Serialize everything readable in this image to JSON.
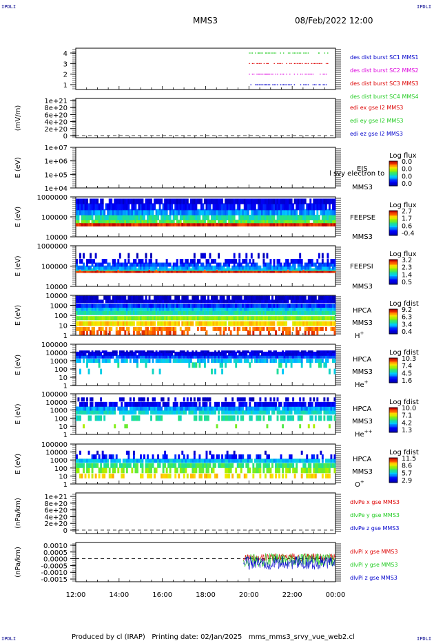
{
  "corner_labels": {
    "tl": "IPDLI",
    "tr": "IPDLI",
    "bl": "IPDLI",
    "br": "IPDLI"
  },
  "header": {
    "spacecraft": "MMS3",
    "datetime": "08/Feb/2022 12:00"
  },
  "footer": {
    "text": "Produced by cl (IRAP)   Printing date: 02/Jan/2025   mms_mms3_srvy_vue_web2.cl"
  },
  "time_axis": {
    "ticks": [
      "12:00",
      "14:00",
      "16:00",
      "18:00",
      "20:00",
      "22:00",
      "00:00"
    ]
  },
  "colors": {
    "red": "#dd0000",
    "green": "#22cc22",
    "blue": "#0000cc",
    "magenta": "#dd00dd"
  },
  "chart_data": [
    {
      "type": "scatter",
      "panel": "des-dist-burst",
      "ylabel": "",
      "yticks": [
        "4",
        "3",
        "2",
        "1"
      ],
      "ylim": [
        0.5,
        4.5
      ],
      "xlim_hours": [
        12,
        24
      ],
      "series": [
        {
          "name": "des dist burst SC1 MMS1",
          "color": "#0000cc",
          "level": 1,
          "x_hours": [
            20.0,
            20.4,
            20.8,
            21.3,
            21.8,
            22.3,
            22.8,
            23.2
          ]
        },
        {
          "name": "des dist burst SC2 MMS2",
          "color": "#dd00dd",
          "level": 2,
          "x_hours": [
            20.0,
            20.4,
            20.8,
            21.3,
            21.8,
            22.3,
            22.8,
            23.2
          ]
        },
        {
          "name": "des dist burst SC3 MMS3",
          "color": "#dd0000",
          "level": 3,
          "x_hours": [
            20.0,
            20.4,
            20.8,
            21.3,
            21.8,
            22.3,
            22.8,
            23.2
          ]
        },
        {
          "name": "des dist burst SC4 MMS4",
          "color": "#22cc22",
          "level": 4,
          "x_hours": [
            20.0,
            20.4,
            20.8,
            21.3,
            21.8,
            22.3,
            22.8,
            23.2
          ]
        }
      ]
    },
    {
      "type": "line",
      "panel": "edi-e",
      "ylabel": "(mV/m)",
      "yticks": [
        "1e+21",
        "8e+20",
        "6e+20",
        "4e+20",
        "2e+20",
        "0"
      ],
      "ylim": [
        0,
        1e+21
      ],
      "series": [
        {
          "name": "edi ex gse l2 MMS3",
          "color": "#dd0000",
          "values": []
        },
        {
          "name": "edi ey gse l2 MMS3",
          "color": "#22cc22",
          "values": []
        },
        {
          "name": "edi ez gse l2 MMS3",
          "color": "#0000cc",
          "values": []
        }
      ]
    },
    {
      "type": "heatmap",
      "panel": "eis",
      "ylabel": "E (eV)",
      "yticks": [
        "1e+07",
        "1e+06",
        "1e+05",
        "1e+04"
      ],
      "ylog": true,
      "instrument": "EIS",
      "spacecraft": "MMS3",
      "overlay_text": "l svy electron to",
      "colorbar": {
        "title": "Log flux",
        "ticks": [
          "0.0",
          "0.0",
          "0.0",
          "0.0"
        ]
      },
      "data_present": false
    },
    {
      "type": "heatmap",
      "panel": "feepse",
      "ylabel": "E (eV)",
      "yticks": [
        "1000000",
        "100000",
        "10000"
      ],
      "ylog": true,
      "instrument": "FEEPSE",
      "spacecraft": "MMS3",
      "colorbar": {
        "title": "Log flux",
        "ticks": [
          "2.7",
          "1.7",
          "0.6",
          "-0.4"
        ]
      },
      "profile": {
        "energy_eV": [
          40000,
          60000,
          100000,
          200000,
          400000,
          800000
        ],
        "level": [
          0.95,
          0.55,
          0.45,
          0.3,
          0.15,
          0.08
        ]
      }
    },
    {
      "type": "heatmap",
      "panel": "feepsi",
      "ylabel": "E (eV)",
      "yticks": [
        "1000000",
        "100000",
        "10000"
      ],
      "ylog": true,
      "instrument": "FEEPSI",
      "spacecraft": "MMS3",
      "colorbar": {
        "title": "Log flux",
        "ticks": [
          "3.2",
          "2.3",
          "1.4",
          "0.5"
        ]
      },
      "profile": {
        "energy_eV": [
          55000,
          70000,
          90000,
          130000,
          200000,
          400000
        ],
        "level": [
          0.95,
          0.4,
          0.3,
          0.22,
          0.12,
          0.05
        ]
      }
    },
    {
      "type": "heatmap",
      "panel": "hpca-h",
      "ylabel": "E (eV)",
      "yticks": [
        "10000",
        "1000",
        "100",
        "10",
        "1"
      ],
      "ylog": true,
      "instrument": "HPCA",
      "spacecraft": "MMS3",
      "species": "H",
      "charge": "+",
      "colorbar": {
        "title": "Log fdist",
        "ticks": [
          "9.2",
          "6.3",
          "3.4",
          "0.4"
        ]
      },
      "profile": {
        "energy_eV": [
          2,
          5,
          20,
          80,
          300,
          800,
          2000,
          6000,
          15000
        ],
        "level": [
          0.9,
          0.85,
          0.75,
          0.6,
          0.45,
          0.35,
          0.2,
          0.08,
          0.03
        ]
      }
    },
    {
      "type": "heatmap",
      "panel": "hpca-he",
      "ylabel": "E (eV)",
      "yticks": [
        "100000",
        "10000",
        "1000",
        "100",
        "10",
        "1"
      ],
      "ylog": true,
      "instrument": "HPCA",
      "spacecraft": "MMS3",
      "species": "He",
      "charge": "+",
      "colorbar": {
        "title": "Log fdist",
        "ticks": [
          "10.3",
          "7.4",
          "4.5",
          "1.6"
        ]
      },
      "profile": {
        "energy_eV": [
          50,
          300,
          1000,
          3000,
          7000,
          12000
        ],
        "level": [
          0.4,
          0.45,
          0.35,
          0.22,
          0.1,
          0.05
        ]
      }
    },
    {
      "type": "heatmap",
      "panel": "hpca-he2",
      "ylabel": "E (eV)",
      "yticks": [
        "100000",
        "10000",
        "1000",
        "100",
        "10",
        "1"
      ],
      "ylog": true,
      "instrument": "HPCA",
      "spacecraft": "MMS3",
      "species": "He",
      "charge": "++",
      "colorbar": {
        "title": "Log fdist",
        "ticks": [
          "10.0",
          "7.1",
          "4.2",
          "1.3"
        ]
      },
      "profile": {
        "energy_eV": [
          10,
          100,
          500,
          1500,
          5000,
          20000
        ],
        "level": [
          0.6,
          0.45,
          0.4,
          0.3,
          0.12,
          0.05
        ]
      }
    },
    {
      "type": "heatmap",
      "panel": "hpca-o",
      "ylabel": "E (eV)",
      "yticks": [
        "100000",
        "10000",
        "1000",
        "100",
        "10",
        "1"
      ],
      "ylog": true,
      "instrument": "HPCA",
      "spacecraft": "MMS3",
      "species": "O",
      "charge": "+",
      "colorbar": {
        "title": "Log fdist",
        "ticks": [
          "11.5",
          "8.6",
          "5.7",
          "2.9"
        ]
      },
      "profile": {
        "energy_eV": [
          10,
          50,
          200,
          800,
          2500,
          8000
        ],
        "level": [
          0.75,
          0.6,
          0.5,
          0.35,
          0.15,
          0.05
        ]
      }
    },
    {
      "type": "line",
      "panel": "dlvpe",
      "ylabel": "(nPa/km)",
      "yticks": [
        "1e+21",
        "8e+20",
        "6e+20",
        "4e+20",
        "2e+20",
        "0"
      ],
      "ylim": [
        0,
        1e+21
      ],
      "series": [
        {
          "name": "dlvPe x gse MMS3",
          "color": "#dd0000",
          "values": []
        },
        {
          "name": "dlvPe y gse MMS3",
          "color": "#22cc22",
          "values": []
        },
        {
          "name": "dlvPe z gse MMS3",
          "color": "#0000cc",
          "values": []
        }
      ]
    },
    {
      "type": "line",
      "panel": "dlvpi",
      "ylabel": "(nPa/km)",
      "yticks": [
        "0.0010",
        "0.0005",
        "0.0000",
        "-0.0005",
        "-0.0010",
        "-0.0015"
      ],
      "ylim": [
        -0.0017,
        0.0012
      ],
      "x_start_hours": 19.75,
      "series": [
        {
          "name": "dlvPi x gse MMS3",
          "color": "#dd0000",
          "mean": 0.0001,
          "spread": 0.0003
        },
        {
          "name": "dlvPi y gse MMS3",
          "color": "#22cc22",
          "mean": -0.0001,
          "spread": 0.0005
        },
        {
          "name": "dlvPi z gse MMS3",
          "color": "#0000cc",
          "mean": -0.0003,
          "spread": 0.0005
        }
      ]
    }
  ]
}
